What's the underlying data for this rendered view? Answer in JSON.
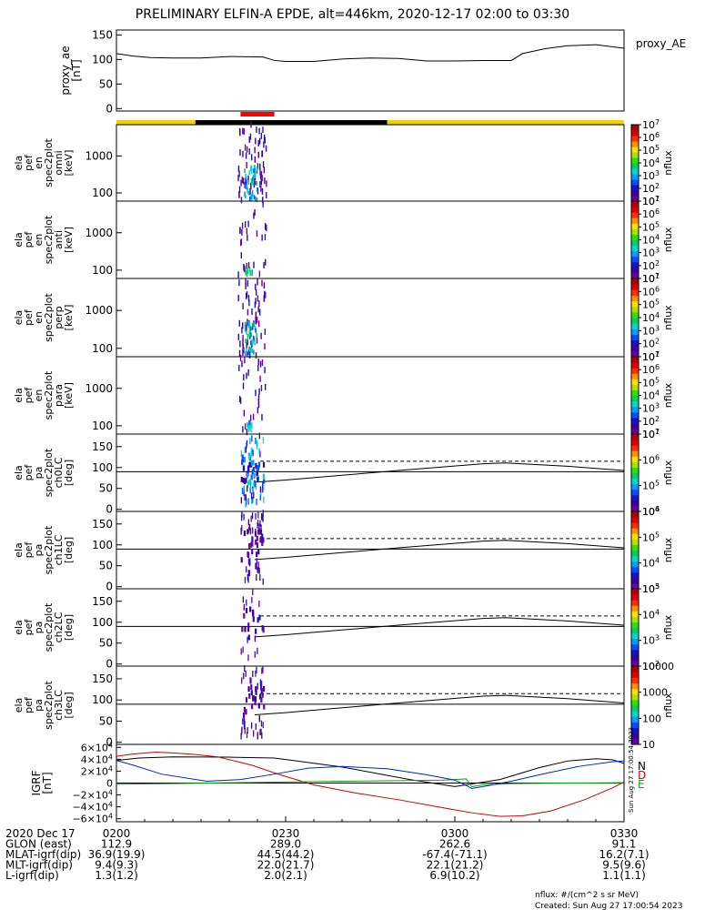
{
  "title": "PRELIMINARY ELFIN-A EPDE, alt=446km, 2020-12-17 02:00 to 03:30",
  "colors": {
    "yellow": "#f0d400",
    "black": "#000000",
    "red": "#ff0000"
  },
  "chart_data": [
    {
      "type": "line",
      "panel": "proxy_ae",
      "ylabel_lines": [
        "proxy_ae",
        "[nT]"
      ],
      "legend": "proxy_AE",
      "ylim": [
        -5,
        160
      ],
      "yticks": [
        0,
        50,
        100,
        150
      ],
      "x_minutes": [
        0,
        3,
        6,
        10,
        15,
        20,
        26,
        28,
        30,
        35,
        40,
        45,
        50,
        55,
        60,
        65,
        70,
        72,
        76,
        80,
        85,
        90
      ],
      "y": [
        112,
        107,
        104,
        103,
        103,
        106,
        105,
        98,
        96,
        96,
        101,
        103,
        102,
        97,
        97,
        98,
        98,
        112,
        122,
        128,
        130,
        123
      ]
    },
    {
      "type": "heatmap",
      "panel": "ela_pef_en_spec2plot_omni",
      "ylabel_lines": [
        "ela",
        "pef",
        "en",
        "spec2plot",
        "omni",
        "[keV]"
      ],
      "y_scale": "log",
      "yticks": [
        100,
        1000
      ],
      "yrange_keV": [
        60,
        7000
      ],
      "colorbar": {
        "label": "nflux",
        "scale": "log",
        "ticks": [
          "10^1",
          "10^2",
          "10^3",
          "10^4",
          "10^5",
          "10^6",
          "10^7"
        ]
      }
    },
    {
      "type": "heatmap",
      "panel": "ela_pef_en_spec2plot_anti",
      "ylabel_lines": [
        "ela",
        "pef",
        "en",
        "spec2plot",
        "anti",
        "[keV]"
      ],
      "y_scale": "log",
      "yticks": [
        100,
        1000
      ],
      "colorbar": {
        "label": "nflux",
        "scale": "log",
        "ticks": [
          "10^1",
          "10^2",
          "10^3",
          "10^4",
          "10^5",
          "10^6",
          "10^7"
        ]
      }
    },
    {
      "type": "heatmap",
      "panel": "ela_pef_en_spec2plot_perp",
      "ylabel_lines": [
        "ela",
        "pef",
        "en",
        "spec2plot",
        "perp",
        "[keV]"
      ],
      "y_scale": "log",
      "yticks": [
        100,
        1000
      ],
      "colorbar": {
        "label": "nflux",
        "scale": "log",
        "ticks": [
          "10^1",
          "10^2",
          "10^3",
          "10^4",
          "10^5",
          "10^6",
          "10^7"
        ]
      }
    },
    {
      "type": "heatmap",
      "panel": "ela_pef_en_spec2plot_para",
      "ylabel_lines": [
        "ela",
        "pef",
        "en",
        "spec2plot",
        "para",
        "[keV]"
      ],
      "y_scale": "log",
      "yticks": [
        100,
        1000
      ],
      "colorbar": {
        "label": "nflux",
        "scale": "log",
        "ticks": [
          "10^1",
          "10^2",
          "10^3",
          "10^4",
          "10^5",
          "10^6",
          "10^7"
        ]
      }
    },
    {
      "type": "heatmap",
      "panel": "ela_pef_pa_spec2plot_ch0LC",
      "ylabel_lines": [
        "ela",
        "pef",
        "pa",
        "spec2plot",
        "ch0LC",
        "[deg]"
      ],
      "ylim": [
        -5,
        180
      ],
      "yticks": [
        0,
        50,
        100,
        150
      ],
      "colorbar": {
        "label": "nflux",
        "scale": "log",
        "ticks": [
          "10^4",
          "10^5",
          "10^6",
          "10^7"
        ]
      }
    },
    {
      "type": "heatmap",
      "panel": "ela_pef_pa_spec2plot_ch1LC",
      "ylabel_lines": [
        "ela",
        "pef",
        "pa",
        "spec2plot",
        "ch1LC",
        "[deg]"
      ],
      "ylim": [
        -5,
        180
      ],
      "yticks": [
        0,
        50,
        100,
        150
      ],
      "colorbar": {
        "label": "nflux",
        "scale": "log",
        "ticks": [
          "10^3",
          "10^4",
          "10^5",
          "10^6"
        ]
      }
    },
    {
      "type": "heatmap",
      "panel": "ela_pef_pa_spec2plot_ch2LC",
      "ylabel_lines": [
        "ela",
        "pef",
        "pa",
        "spec2plot",
        "ch2LC",
        "[deg]"
      ],
      "ylim": [
        -5,
        180
      ],
      "yticks": [
        0,
        50,
        100,
        150
      ],
      "colorbar": {
        "label": "nflux",
        "scale": "log",
        "ticks": [
          "10^2",
          "10^3",
          "10^4",
          "10^5"
        ]
      }
    },
    {
      "type": "heatmap",
      "panel": "ela_pef_pa_spec2plot_ch3LC",
      "ylabel_lines": [
        "ela",
        "pef",
        "pa",
        "spec2plot",
        "ch3LC",
        "[deg]"
      ],
      "ylim": [
        -5,
        180
      ],
      "yticks": [
        0,
        50,
        100,
        150
      ],
      "colorbar": {
        "label": "nflux",
        "scale": "log",
        "ticks": [
          "10",
          "100",
          "1000",
          "10000"
        ]
      }
    },
    {
      "type": "line",
      "panel": "IGRF",
      "ylabel_lines": [
        "IGRF",
        "[nT]"
      ],
      "ylim": [
        -65000,
        65000
      ],
      "yticks": [
        "6×10^4",
        "4×10^4",
        "2×10^4",
        "0",
        "−2×10^4",
        "−4×10^4",
        "−6×10^4"
      ],
      "series": [
        {
          "name": "N",
          "color": "#000000",
          "x_minutes": [
            0,
            4,
            10,
            20,
            28,
            32,
            40,
            52,
            60,
            68,
            75,
            80,
            85,
            88,
            90
          ],
          "values": [
            38000,
            42000,
            44000,
            43500,
            42000,
            37000,
            27000,
            6000,
            -6000,
            6000,
            26000,
            37000,
            41000,
            39000,
            33000
          ]
        },
        {
          "name": "D",
          "color": "#cc0000",
          "x_minutes": [
            0,
            3,
            7,
            11,
            14,
            18,
            24,
            29,
            35,
            42,
            50,
            57,
            63,
            68,
            72,
            77,
            83,
            88,
            90
          ],
          "values": [
            45000,
            49000,
            52000,
            50000,
            48000,
            44000,
            30000,
            14000,
            -3000,
            -16000,
            -28000,
            -40000,
            -50000,
            -56000,
            -55000,
            -47000,
            -28000,
            -8000,
            2000
          ]
        },
        {
          "name": "E",
          "color": "#00aa00",
          "x_minutes": [
            0,
            10,
            20,
            28,
            40,
            50,
            58,
            62,
            63,
            65,
            70,
            80,
            90
          ],
          "values": [
            -2000,
            -1000,
            500,
            1500,
            3000,
            4000,
            5000,
            7000,
            -6000,
            -3000,
            -1000,
            0,
            500
          ]
        },
        {
          "name": "",
          "color": "#0022cc",
          "x_minutes": [
            0,
            3,
            8,
            16,
            22,
            28,
            34,
            40,
            48,
            55,
            60,
            62,
            63,
            65,
            70,
            76,
            82,
            88,
            90
          ],
          "values": [
            38000,
            30000,
            15000,
            3000,
            6000,
            15000,
            25000,
            28000,
            24000,
            14000,
            5000,
            -4000,
            -9000,
            -6000,
            3000,
            16000,
            28000,
            36000,
            37000
          ]
        }
      ]
    }
  ],
  "xaxis": {
    "tick_labels": [
      "0200",
      "0230",
      "0300",
      "0330"
    ],
    "rows": [
      {
        "label": "2020 Dec 17",
        "values": [
          "0200",
          "0230",
          "0300",
          "0330"
        ]
      },
      {
        "label": "GLON (east)",
        "values": [
          "112.9",
          "289.0",
          "262.6",
          "91.1"
        ]
      },
      {
        "label": "MLAT-igrf(dip)",
        "values": [
          "36.9(19.9)",
          "44.5(44.2)",
          "-67.4(-71.1)",
          "16.2(7.1)"
        ]
      },
      {
        "label": "MLT-igrf(dip)",
        "values": [
          "9.4(9.3)",
          "22.0(21.7)",
          "22.1(21.2)",
          "9.5(9.6)"
        ]
      },
      {
        "label": "L-igrf(dip)",
        "values": [
          "1.3(1.2)",
          "2.0(2.1)",
          "6.9(10.2)",
          "1.1(1.1)"
        ]
      }
    ]
  },
  "footer": {
    "units": "nflux: #/(cm^2 s sr MeV)",
    "created": "Created: Sun Aug 27 17:00:54 2023",
    "stamp": "Sun Aug 27 17:00:54 2023"
  }
}
